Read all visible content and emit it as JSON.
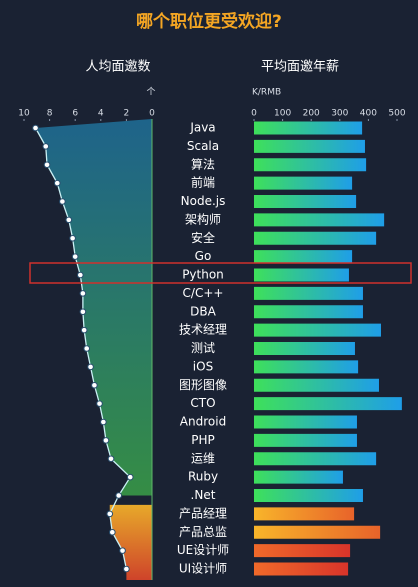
{
  "title": "哪个职位更受欢迎?",
  "chart_data": [
    {
      "type": "line",
      "title": "人均面邀数",
      "unit": "个",
      "values": [
        9.1,
        8.3,
        8.2,
        7.4,
        7.0,
        6.5,
        6.2,
        6.0,
        5.6,
        5.4,
        5.4,
        5.3,
        5.1,
        4.8,
        4.5,
        4.1,
        3.8,
        3.6,
        3.2,
        1.7,
        2.6,
        3.3,
        3.1,
        2.3,
        2.0
      ],
      "xlim": [
        10,
        0
      ],
      "xticks": [
        10,
        8,
        6,
        4,
        2,
        0
      ],
      "color": "#c9f0f4"
    },
    {
      "type": "bar",
      "title": "平均面邀年薪",
      "unit": "K/RMB",
      "categories": [
        "Java",
        "Scala",
        "算法",
        "前端",
        "Node.js",
        "架构师",
        "安全",
        "Go",
        "Python",
        "C/C++",
        "DBA",
        "技术经理",
        "测试",
        "iOS",
        "图形图像",
        "CTO",
        "Android",
        "PHP",
        "运维",
        "Ruby",
        ".Net",
        "产品经理",
        "产品总监",
        "UE设计师",
        "UI设计师"
      ],
      "values": [
        378,
        388,
        392,
        343,
        357,
        455,
        427,
        343,
        332,
        381,
        381,
        444,
        353,
        364,
        437,
        517,
        360,
        360,
        427,
        311,
        381,
        350,
        441,
        336,
        329
      ],
      "xlim": [
        0,
        500
      ],
      "xticks": [
        0,
        100,
        200,
        300,
        400,
        500
      ],
      "colors": [
        [
          "#3ee05a",
          "#1f9ee8"
        ],
        [
          "#3ee05a",
          "#1f9ee8"
        ],
        [
          "#3ee05a",
          "#1f9ee8"
        ],
        [
          "#3ee05a",
          "#1f9ee8"
        ],
        [
          "#3ee05a",
          "#1f9ee8"
        ],
        [
          "#3ee05a",
          "#1f9ee8"
        ],
        [
          "#3ee05a",
          "#1f9ee8"
        ],
        [
          "#3ee05a",
          "#1f9ee8"
        ],
        [
          "#3ee05a",
          "#1f9ee8"
        ],
        [
          "#3ee05a",
          "#1f9ee8"
        ],
        [
          "#3ee05a",
          "#1f9ee8"
        ],
        [
          "#3ee05a",
          "#1f9ee8"
        ],
        [
          "#3ee05a",
          "#1f9ee8"
        ],
        [
          "#3ee05a",
          "#1f9ee8"
        ],
        [
          "#3ee05a",
          "#1f9ee8"
        ],
        [
          "#3ee05a",
          "#1f9ee8"
        ],
        [
          "#3ee05a",
          "#1f9ee8"
        ],
        [
          "#3ee05a",
          "#1f9ee8"
        ],
        [
          "#3ee05a",
          "#1f9ee8"
        ],
        [
          "#3ee05a",
          "#1f9ee8"
        ],
        [
          "#3ee05a",
          "#1f9ee8"
        ],
        [
          "#f8b52a",
          "#e8632a"
        ],
        [
          "#f8b52a",
          "#e8632a"
        ],
        [
          "#f06a2a",
          "#d8342a"
        ],
        [
          "#f06a2a",
          "#d8342a"
        ]
      ]
    }
  ]
}
